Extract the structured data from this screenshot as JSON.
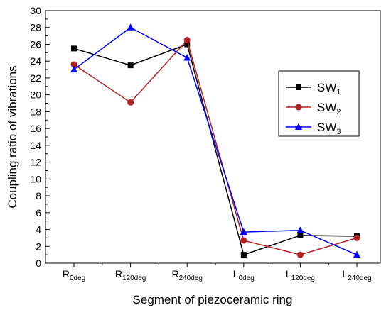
{
  "chart_data": {
    "type": "line",
    "xlabel": "Segment of piezoceramic ring",
    "ylabel": "Coupling ratio of vibrations",
    "ylim": [
      0,
      30
    ],
    "yticks": [
      0,
      2,
      4,
      6,
      8,
      10,
      12,
      14,
      16,
      18,
      20,
      22,
      24,
      26,
      28,
      30
    ],
    "categories": [
      {
        "base": "R",
        "sub": "0deg"
      },
      {
        "base": "R",
        "sub": "120deg"
      },
      {
        "base": "R",
        "sub": "240deg"
      },
      {
        "base": "L",
        "sub": "0deg"
      },
      {
        "base": "L",
        "sub": "120deg"
      },
      {
        "base": "L",
        "sub": "240deg"
      }
    ],
    "legend_position": "right",
    "grid": false,
    "series": [
      {
        "name": "SW",
        "sub": "1",
        "color": "#000000",
        "marker": "square",
        "values": [
          25.5,
          23.5,
          26.0,
          1.0,
          3.3,
          3.2
        ]
      },
      {
        "name": "SW",
        "sub": "2",
        "color": "#b22222",
        "marker": "circle",
        "values": [
          23.6,
          19.1,
          26.5,
          2.7,
          1.0,
          3.0
        ]
      },
      {
        "name": "SW",
        "sub": "3",
        "color": "#0000ff",
        "marker": "triangle",
        "values": [
          23.0,
          28.0,
          24.4,
          3.7,
          3.9,
          1.0
        ]
      }
    ]
  }
}
